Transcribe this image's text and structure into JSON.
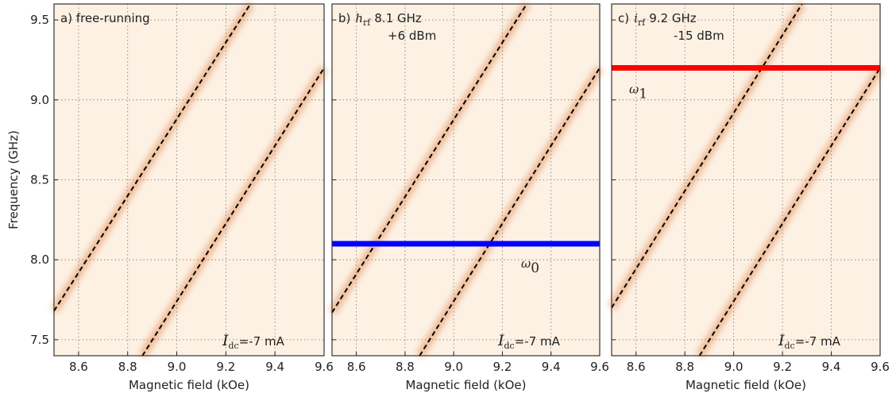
{
  "chart_data": [
    {
      "type": "line",
      "title": "a) free-running",
      "xlabel": "Magnetic field (kOe)",
      "ylabel": "Frequency (GHz)",
      "xlim": [
        8.5,
        9.6
      ],
      "ylim": [
        7.4,
        9.6
      ],
      "xticks": [
        8.6,
        8.8,
        {
          "value": 9.0,
          "label": "9.0"
        },
        9.2,
        9.4,
        9.6
      ],
      "yticks": [
        7.5,
        {
          "value": 8.0,
          "label": "8.0"
        },
        8.5,
        {
          "value": 9.0,
          "label": "9.0"
        },
        9.5
      ],
      "grid": true,
      "series": [
        {
          "color": "#000000",
          "linestyle": "dashed",
          "x": [
            8.5,
            9.3
          ],
          "values": [
            7.68,
            9.6
          ]
        },
        {
          "color": "#000000",
          "linestyle": "dashed",
          "x": [
            8.86,
            9.6
          ],
          "values": [
            7.4,
            9.2
          ]
        }
      ],
      "note": {
        "symbol": "I",
        "sub": "dc",
        "text": "=-7 mA"
      }
    },
    {
      "type": "line",
      "title": "b)",
      "title_symbol": "h",
      "title_sub": "rf",
      "title_text": "8.1 GHz",
      "title_line2": "+6 dBm",
      "title_color": "#0000ff",
      "xlabel": "Magnetic field (kOe)",
      "xlim": [
        8.5,
        9.6
      ],
      "ylim": [
        7.4,
        9.6
      ],
      "xticks": [
        8.6,
        8.8,
        {
          "value": 9.0,
          "label": "9.0"
        },
        9.2,
        9.4,
        9.6
      ],
      "yticks": [
        7.5,
        {
          "value": 8.0,
          "label": "8.0"
        },
        8.5,
        {
          "value": 9.0,
          "label": "9.0"
        },
        9.5
      ],
      "grid": true,
      "series": [
        {
          "color": "#000000",
          "linestyle": "dashed",
          "x": [
            8.5,
            9.3
          ],
          "values": [
            7.67,
            9.6
          ]
        },
        {
          "color": "#000000",
          "linestyle": "dashed",
          "x": [
            8.86,
            9.6
          ],
          "values": [
            7.4,
            9.2
          ]
        }
      ],
      "hlines": [
        {
          "value": 8.1,
          "color": "#0000ff",
          "label": "ω",
          "sub": "0"
        }
      ],
      "note": {
        "symbol": "I",
        "sub": "dc",
        "text": "=-7 mA"
      }
    },
    {
      "type": "line",
      "title": "c)",
      "title_symbol": "i",
      "title_sub": "rf",
      "title_text": "9.2 GHz",
      "title_line2": "-15 dBm",
      "title_color": "#ff0000",
      "xlabel": "Magnetic field (kOe)",
      "xlim": [
        8.5,
        9.6
      ],
      "ylim": [
        7.4,
        9.6
      ],
      "xticks": [
        8.6,
        8.8,
        {
          "value": 9.0,
          "label": "9.0"
        },
        9.2,
        9.4,
        9.6
      ],
      "yticks": [
        7.5,
        {
          "value": 8.0,
          "label": "8.0"
        },
        8.5,
        {
          "value": 9.0,
          "label": "9.0"
        },
        9.5
      ],
      "grid": true,
      "series": [
        {
          "color": "#000000",
          "linestyle": "dashed",
          "x": [
            8.5,
            9.28
          ],
          "values": [
            7.7,
            9.6
          ]
        },
        {
          "color": "#000000",
          "linestyle": "dashed",
          "x": [
            8.86,
            9.6
          ],
          "values": [
            7.4,
            9.2
          ]
        }
      ],
      "hlines": [
        {
          "value": 9.2,
          "color": "#ff0000",
          "label": "ω",
          "sub": "1"
        }
      ],
      "note": {
        "symbol": "I",
        "sub": "dc",
        "text": "=-7 mA"
      }
    }
  ]
}
